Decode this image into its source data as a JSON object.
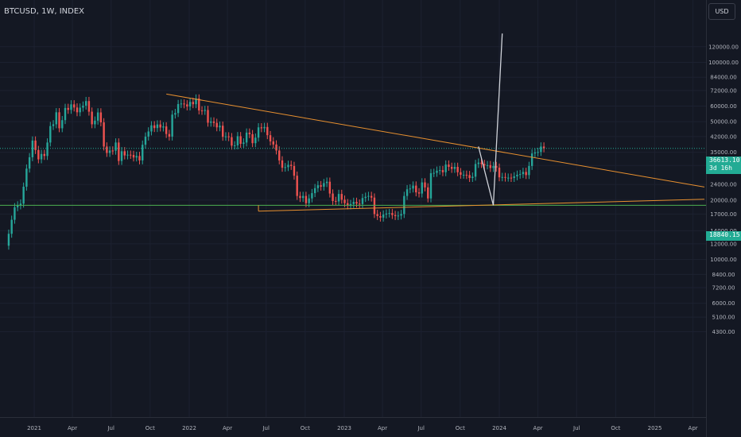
{
  "header": {
    "symbol": "BTCUSD, 1W, INDEX"
  },
  "currency_button": {
    "label": "USD"
  },
  "price_tags": {
    "current_price": "36613.10",
    "countdown": "3d 16h",
    "hline_price": "18840.15"
  },
  "colors": {
    "background": "#141823",
    "grid": "#1c2130",
    "up": "#26a69a",
    "down": "#ef5350",
    "trendline": "#e8902f",
    "projection": "#d0d3da",
    "hline": "#4caf50",
    "current_line": "#22ab94"
  },
  "chart_data": {
    "type": "candlestick",
    "title": "",
    "xlabel": "",
    "ylabel": "",
    "scale": "log",
    "ylim": [
      3900,
      140000
    ],
    "y_ticks": [
      "120000.00",
      "100000.00",
      "84000.00",
      "72000.00",
      "60000.00",
      "50000.00",
      "42000.00",
      "35000.00",
      "30000.00",
      "24000.00",
      "20000.00",
      "17000.00",
      "14000.00",
      "12000.00",
      "10000.00",
      "8400.00",
      "7200.00",
      "6000.00",
      "5100.00",
      "4300.00"
    ],
    "x_ticks": [
      {
        "label": "2021",
        "date": "2021-01-01"
      },
      {
        "label": "Apr",
        "date": "2021-04-01"
      },
      {
        "label": "Jul",
        "date": "2021-07-01"
      },
      {
        "label": "Oct",
        "date": "2021-10-01"
      },
      {
        "label": "2022",
        "date": "2022-01-01"
      },
      {
        "label": "Apr",
        "date": "2022-04-01"
      },
      {
        "label": "Jul",
        "date": "2022-07-01"
      },
      {
        "label": "Oct",
        "date": "2022-10-01"
      },
      {
        "label": "2023",
        "date": "2023-01-01"
      },
      {
        "label": "Apr",
        "date": "2023-04-01"
      },
      {
        "label": "Jul",
        "date": "2023-07-01"
      },
      {
        "label": "Oct",
        "date": "2023-10-01"
      },
      {
        "label": "2024",
        "date": "2024-01-01"
      },
      {
        "label": "Apr",
        "date": "2024-04-01"
      },
      {
        "label": "Jul",
        "date": "2024-07-01"
      },
      {
        "label": "Oct",
        "date": "2024-10-01"
      },
      {
        "label": "2025",
        "date": "2025-01-01"
      },
      {
        "label": "Apr",
        "date": "2025-04-01"
      }
    ],
    "first_week": "2020-11-02",
    "series_close": [
      13500,
      15900,
      18400,
      18800,
      19200,
      23400,
      28900,
      33000,
      40100,
      35900,
      32200,
      34300,
      33500,
      39200,
      47500,
      48500,
      55800,
      46300,
      50900,
      58700,
      57400,
      61200,
      59000,
      55800,
      58900,
      60300,
      63600,
      56200,
      48500,
      50600,
      55700,
      49600,
      37400,
      34700,
      35700,
      35600,
      39200,
      31600,
      35400,
      33700,
      34000,
      33900,
      32900,
      33500,
      31800,
      38200,
      42000,
      44600,
      47900,
      46400,
      48400,
      46700,
      47300,
      43300,
      42000,
      54300,
      55300,
      61400,
      61800,
      61200,
      59700,
      63000,
      61300,
      65500,
      57000,
      56700,
      57300,
      49400,
      50100,
      49300,
      46800,
      47700,
      41900,
      42100,
      41700,
      37800,
      37900,
      42200,
      38600,
      39200,
      44000,
      43200,
      38900,
      41500,
      46800,
      46300,
      47000,
      42700,
      39700,
      38300,
      35700,
      31800,
      29200,
      29400,
      30200,
      29800,
      26600,
      21000,
      20500,
      21000,
      19300,
      20400,
      21700,
      23000,
      23800,
      23400,
      24400,
      24800,
      21600,
      19800,
      19700,
      21500,
      20100,
      19300,
      18800,
      19100,
      19600,
      19200,
      19100,
      20500,
      20800,
      21000,
      20600,
      17000,
      16600,
      16300,
      16900,
      17100,
      17200,
      16800,
      16600,
      16700,
      17000,
      21000,
      22700,
      22900,
      23700,
      21900,
      21600,
      24600,
      23200,
      20400,
      27400,
      27500,
      28200,
      28400,
      27700,
      30300,
      29500,
      28800,
      29500,
      27700,
      26900,
      26900,
      26800,
      25900,
      26300,
      30500,
      31000,
      30500,
      30000,
      30100,
      29100,
      29800,
      29200,
      26100,
      26200,
      26000,
      26000,
      25900,
      26400,
      26900,
      27100,
      27800,
      26800,
      29800,
      34500,
      34900,
      35100,
      37400,
      36613
    ],
    "upper_trendline": [
      {
        "date": "2021-11-08",
        "price": 69000
      },
      {
        "date": "2025-04-28",
        "price": 23300
      }
    ],
    "lower_trendline": [
      {
        "date": "2022-06-13",
        "price": 17600
      },
      {
        "date": "2025-04-28",
        "price": 20200
      }
    ],
    "projection": [
      {
        "date": "2023-11-13",
        "price": 37400
      },
      {
        "date": "2023-12-18",
        "price": 18840.15
      },
      {
        "date": "2024-01-08",
        "price": 140000
      }
    ],
    "horizontal_line": 18840.15,
    "current_price": 36613.1
  }
}
